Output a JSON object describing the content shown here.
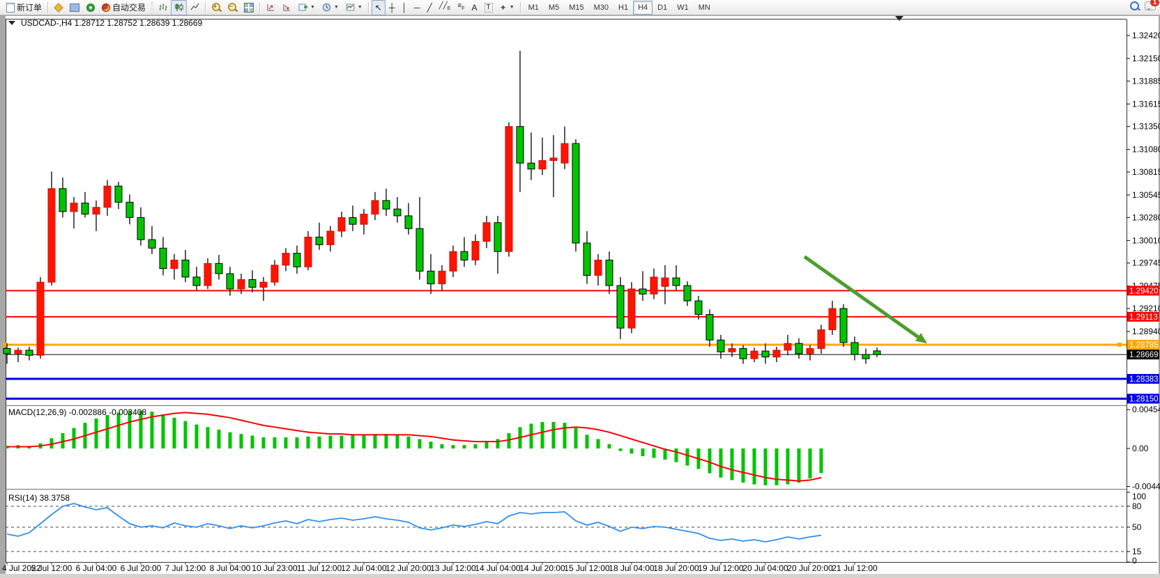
{
  "toolbar": {
    "new_order_label": "新订单",
    "autotrading_label": "自动交易",
    "timeframes": [
      "M1",
      "M5",
      "M15",
      "M30",
      "H1",
      "H4",
      "D1",
      "W1",
      "MN"
    ],
    "active_timeframe": "H4",
    "notification_count": "1"
  },
  "chart": {
    "info": {
      "symbol": "USDCAD-,H4",
      "open": "1.28712",
      "high": "1.28752",
      "low": "1.28639",
      "close": "1.28669"
    },
    "macd_label": "MACD(12,26,9) -0.002886 -0.003408",
    "rsi_label": "RSI(14) 38.3758"
  },
  "chart_data": {
    "type": "candlestick",
    "symbol": "USDCAD-",
    "timeframe": "H4",
    "colors": {
      "bull": "#fe1400",
      "bear": "#00c400",
      "wick": "#000000",
      "level_red": "#fe0000",
      "level_orange": "#ffa800",
      "level_blue": "#0000e8",
      "current_price": "#000000",
      "macd_hist": "#00c400",
      "macd_signal": "#fe0000",
      "rsi_line": "#2f8fee",
      "arrow": "#4d9e2d",
      "background": "#ffffff"
    },
    "price_axis_ticks": [
      "1.32420",
      "1.32150",
      "1.31885",
      "1.31615",
      "1.31350",
      "1.31080",
      "1.30815",
      "1.30545",
      "1.30280",
      "1.30010",
      "1.29745",
      "1.29475",
      "1.29210",
      "1.28940"
    ],
    "price_levels": [
      {
        "label": "1.29420",
        "price": 1.2942,
        "color": "#fe0000",
        "width": 2,
        "handle": false
      },
      {
        "label": "1.29113",
        "price": 1.29113,
        "color": "#fe0000",
        "width": 2,
        "handle": false
      },
      {
        "label": "1.28785",
        "price": 1.28785,
        "color": "#ffa800",
        "width": 3,
        "handle": true
      },
      {
        "label": "1.28669",
        "price": 1.28669,
        "color": "#000000",
        "width": 1,
        "handle": false
      },
      {
        "label": "1.28383",
        "price": 1.28383,
        "color": "#0000e8",
        "width": 3,
        "handle": false
      },
      {
        "label": "1.28150",
        "price": 1.2815,
        "color": "#0000e8",
        "width": 3,
        "handle": false
      }
    ],
    "time_labels": [
      "4 Jul 2022",
      "5 Jul 12:00",
      "6 Jul 04:00",
      "6 Jul 20:00",
      "7 Jul 12:00",
      "8 Jul 04:00",
      "10 Jul 23:00",
      "11 Jul 12:00",
      "12 Jul 04:00",
      "12 Jul 20:00",
      "13 Jul 12:00",
      "14 Jul 04:00",
      "14 Jul 20:00",
      "15 Jul 12:00",
      "18 Jul 04:00",
      "18 Jul 20:00",
      "19 Jul 12:00",
      "20 Jul 04:00",
      "20 Jul 20:00",
      "21 Jul 12:00"
    ],
    "candles": [
      [
        1.2874,
        1.288,
        1.2856,
        1.2868
      ],
      [
        1.2868,
        1.2875,
        1.2858,
        1.2872
      ],
      [
        1.2872,
        1.2876,
        1.286,
        1.2866
      ],
      [
        1.2866,
        1.2958,
        1.2862,
        1.2952
      ],
      [
        1.2952,
        1.3082,
        1.2948,
        1.3062
      ],
      [
        1.3062,
        1.3075,
        1.3028,
        1.3035
      ],
      [
        1.3035,
        1.3052,
        1.3015,
        1.3045
      ],
      [
        1.3045,
        1.3058,
        1.3028,
        1.3032
      ],
      [
        1.3032,
        1.3048,
        1.3012,
        1.304
      ],
      [
        1.304,
        1.3072,
        1.303,
        1.3065
      ],
      [
        1.3065,
        1.307,
        1.3038,
        1.3046
      ],
      [
        1.3046,
        1.3055,
        1.302,
        1.3028
      ],
      [
        1.3028,
        1.304,
        1.2995,
        1.3002
      ],
      [
        1.3002,
        1.3018,
        1.2985,
        1.2992
      ],
      [
        1.2992,
        1.3005,
        1.296,
        1.2968
      ],
      [
        1.2968,
        1.2985,
        1.2955,
        1.2978
      ],
      [
        1.2978,
        1.299,
        1.2952,
        1.2958
      ],
      [
        1.2958,
        1.297,
        1.2942,
        1.2948
      ],
      [
        1.2948,
        1.298,
        1.2944,
        1.2974
      ],
      [
        1.2974,
        1.2984,
        1.2955,
        1.2962
      ],
      [
        1.2962,
        1.297,
        1.2936,
        1.2944
      ],
      [
        1.2944,
        1.2962,
        1.2938,
        1.2955
      ],
      [
        1.2955,
        1.2966,
        1.294,
        1.2946
      ],
      [
        1.2946,
        1.2958,
        1.293,
        1.2952
      ],
      [
        1.2952,
        1.2978,
        1.2948,
        1.2972
      ],
      [
        1.2972,
        1.2992,
        1.2965,
        1.2986
      ],
      [
        1.2986,
        1.2995,
        1.2962,
        1.297
      ],
      [
        1.297,
        1.3012,
        1.2966,
        1.3005
      ],
      [
        1.3005,
        1.3022,
        1.299,
        1.2996
      ],
      [
        1.2996,
        1.3018,
        1.2988,
        1.3012
      ],
      [
        1.3012,
        1.3035,
        1.3005,
        1.3028
      ],
      [
        1.3028,
        1.3042,
        1.3012,
        1.302
      ],
      [
        1.302,
        1.3038,
        1.3008,
        1.3032
      ],
      [
        1.3032,
        1.3058,
        1.3025,
        1.3048
      ],
      [
        1.3048,
        1.3062,
        1.303,
        1.3038
      ],
      [
        1.3038,
        1.3052,
        1.3022,
        1.303
      ],
      [
        1.303,
        1.3045,
        1.3008,
        1.3015
      ],
      [
        1.3015,
        1.3052,
        1.2955,
        1.2965
      ],
      [
        1.2965,
        1.2985,
        1.2938,
        1.295
      ],
      [
        1.295,
        1.2972,
        1.2942,
        1.2965
      ],
      [
        1.2965,
        1.2995,
        1.2958,
        1.2988
      ],
      [
        1.2988,
        1.3005,
        1.297,
        1.2978
      ],
      [
        1.2978,
        1.3008,
        1.2972,
        1.3
      ],
      [
        1.3,
        1.303,
        1.2992,
        1.3022
      ],
      [
        1.3022,
        1.303,
        1.2962,
        1.2988
      ],
      [
        1.2988,
        1.314,
        1.2982,
        1.3135
      ],
      [
        1.3135,
        1.3224,
        1.3058,
        1.3092
      ],
      [
        1.3092,
        1.3128,
        1.3072,
        1.3085
      ],
      [
        1.3085,
        1.3122,
        1.3078,
        1.3095
      ],
      [
        1.3095,
        1.3125,
        1.3052,
        1.3098
      ],
      [
        1.3092,
        1.3135,
        1.3085,
        1.3115
      ],
      [
        1.3115,
        1.312,
        1.2988,
        1.2998
      ],
      [
        1.2998,
        1.3012,
        1.295,
        1.296
      ],
      [
        1.296,
        1.2985,
        1.2948,
        1.2978
      ],
      [
        1.2978,
        1.2988,
        1.2938,
        1.2948
      ],
      [
        1.2948,
        1.2958,
        1.2885,
        1.2898
      ],
      [
        1.2898,
        1.2952,
        1.2892,
        1.2944
      ],
      [
        1.2944,
        1.2965,
        1.293,
        1.2938
      ],
      [
        1.2938,
        1.2968,
        1.2932,
        1.2958
      ],
      [
        1.2947,
        1.2972,
        1.2926,
        1.2957
      ],
      [
        1.2957,
        1.2972,
        1.2942,
        1.2948
      ],
      [
        1.2948,
        1.2953,
        1.2924,
        1.293
      ],
      [
        1.293,
        1.2936,
        1.2908,
        1.2914
      ],
      [
        1.2914,
        1.292,
        1.2876,
        1.2884
      ],
      [
        1.2884,
        1.289,
        1.2862,
        1.287
      ],
      [
        1.287,
        1.288,
        1.2864,
        1.2874
      ],
      [
        1.2874,
        1.2878,
        1.2856,
        1.2862
      ],
      [
        1.2862,
        1.2875,
        1.2858,
        1.2871
      ],
      [
        1.2871,
        1.288,
        1.2856,
        1.2864
      ],
      [
        1.2864,
        1.2876,
        1.2858,
        1.2872
      ],
      [
        1.2872,
        1.289,
        1.2866,
        1.288
      ],
      [
        1.288,
        1.2886,
        1.2862,
        1.2868
      ],
      [
        1.2868,
        1.2878,
        1.286,
        1.2874
      ],
      [
        1.2874,
        1.2902,
        1.2868,
        1.2896
      ],
      [
        1.2896,
        1.293,
        1.289,
        1.2921
      ],
      [
        1.2921,
        1.2926,
        1.2876,
        1.2881
      ],
      [
        1.2881,
        1.2888,
        1.286,
        1.2867
      ],
      [
        1.2867,
        1.2874,
        1.2856,
        1.2862
      ],
      [
        1.28712,
        1.28752,
        1.28639,
        1.28669
      ]
    ],
    "macd": {
      "params": "12,26,9",
      "value": -0.002886,
      "signal_value": -0.003408,
      "axis_labels": [
        "0.004545",
        "0.00",
        "-0.004443"
      ],
      "hist": [
        0.0003,
        0.0004,
        0.0003,
        0.0006,
        0.0012,
        0.0018,
        0.0024,
        0.003,
        0.0035,
        0.0039,
        0.0042,
        0.0044,
        0.0044,
        0.0043,
        0.004,
        0.0036,
        0.0032,
        0.0028,
        0.0025,
        0.0022,
        0.0019,
        0.0017,
        0.0015,
        0.0013,
        0.0013,
        0.0013,
        0.0013,
        0.0014,
        0.0014,
        0.0015,
        0.0015,
        0.0016,
        0.0016,
        0.0017,
        0.0017,
        0.0016,
        0.0014,
        0.0011,
        0.0008,
        0.0005,
        0.0004,
        0.0004,
        0.0005,
        0.0008,
        0.0011,
        0.0018,
        0.0025,
        0.0029,
        0.0031,
        0.0031,
        0.003,
        0.0024,
        0.0016,
        0.0011,
        0.0005,
        -0.0003,
        -0.0006,
        -0.0009,
        -0.0011,
        -0.0013,
        -0.0016,
        -0.002,
        -0.0024,
        -0.0029,
        -0.0034,
        -0.0037,
        -0.004,
        -0.0042,
        -0.0043,
        -0.0043,
        -0.0042,
        -0.004,
        -0.0035,
        -0.002886
      ],
      "signal": [
        0.0002,
        0.0002,
        0.0002,
        0.0003,
        0.0005,
        0.0008,
        0.0011,
        0.0015,
        0.0019,
        0.0023,
        0.0027,
        0.0031,
        0.0034,
        0.0037,
        0.0039,
        0.0041,
        0.0042,
        0.0041,
        0.004,
        0.0038,
        0.0036,
        0.0033,
        0.003,
        0.0027,
        0.0025,
        0.0023,
        0.0021,
        0.0019,
        0.0018,
        0.0017,
        0.0017,
        0.0016,
        0.0016,
        0.0016,
        0.0016,
        0.0016,
        0.0016,
        0.0015,
        0.0014,
        0.0012,
        0.001,
        0.0009,
        0.0008,
        0.0008,
        0.0008,
        0.001,
        0.0013,
        0.0016,
        0.0019,
        0.0022,
        0.0024,
        0.0025,
        0.0024,
        0.0022,
        0.0019,
        0.0015,
        0.0011,
        0.0007,
        0.0003,
        -0.0001,
        -0.0004,
        -0.0008,
        -0.0012,
        -0.0016,
        -0.0021,
        -0.0025,
        -0.0028,
        -0.0031,
        -0.0034,
        -0.0036,
        -0.0037,
        -0.0038,
        -0.0037,
        -0.003408
      ]
    },
    "rsi": {
      "period": 14,
      "value": 38.3758,
      "levels": [
        80,
        50,
        15
      ],
      "axis_labels": [
        "100",
        "80",
        "50",
        "15",
        "0"
      ],
      "values": [
        40,
        37,
        42,
        55,
        68,
        80,
        84,
        79,
        75,
        78,
        66,
        55,
        50,
        52,
        49,
        56,
        52,
        50,
        55,
        52,
        48,
        52,
        49,
        52,
        56,
        59,
        55,
        61,
        58,
        61,
        63,
        60,
        62,
        65,
        62,
        60,
        57,
        49,
        46,
        49,
        53,
        51,
        54,
        58,
        55,
        66,
        71,
        69,
        71,
        71,
        72,
        59,
        53,
        57,
        51,
        44,
        50,
        48,
        51,
        50,
        47,
        44,
        41,
        34,
        31,
        33,
        30,
        32,
        29,
        32,
        36,
        33,
        36,
        38.38
      ]
    },
    "trend_arrow": {
      "from_bar": 71.5,
      "from_price": 1.2982,
      "to_bar": 82.5,
      "to_price": 1.288,
      "color": "#4d9e2d"
    }
  }
}
